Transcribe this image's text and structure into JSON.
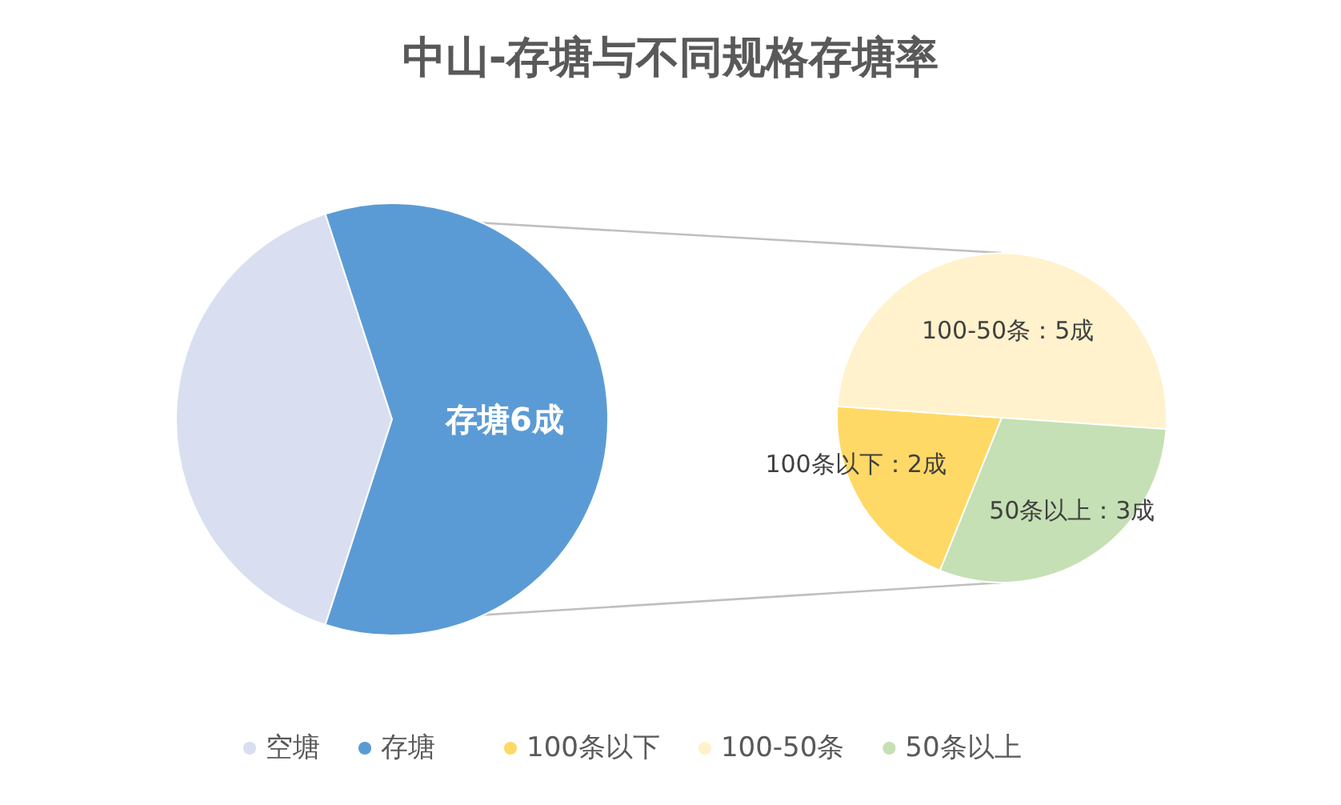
{
  "chart_data": [
    {
      "type": "pie",
      "title": "中山-存塘与不同规格存塘率",
      "categories": [
        "空塘",
        "存塘"
      ],
      "values": [
        4,
        6
      ],
      "colors": [
        "#d9dff0",
        "#5b9bd5"
      ],
      "value_labels": [
        null,
        "存塘6成"
      ],
      "legend": "bottom"
    },
    {
      "type": "pie",
      "categories": [
        "100条以下",
        "100-50条",
        "50条以上"
      ],
      "values": [
        2,
        5,
        3
      ],
      "colors": [
        "#ffd966",
        "#fff2cc",
        "#c5e0b4"
      ],
      "value_labels": [
        "100条以下：2成",
        "100-50条：5成",
        "50条以上：3成"
      ],
      "legend": "bottom"
    }
  ]
}
